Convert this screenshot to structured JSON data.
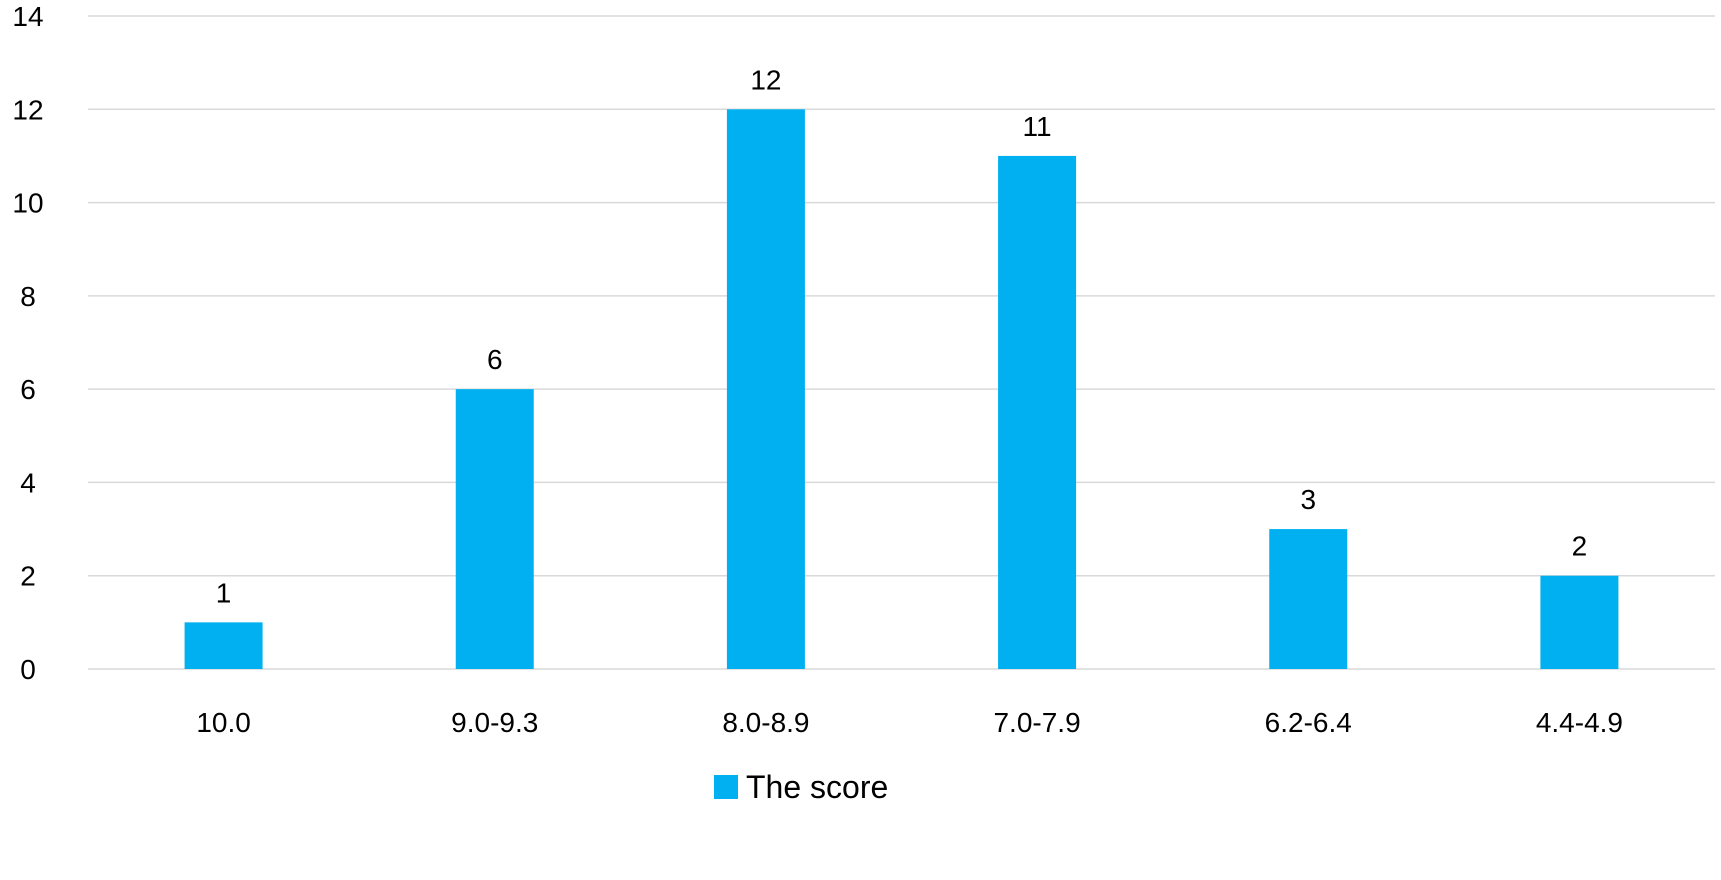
{
  "chart_data": {
    "type": "bar",
    "categories": [
      "10.0",
      "9.0-9.3",
      "8.0-8.9",
      "7.0-7.9",
      "6.2-6.4",
      "4.4-4.9"
    ],
    "series": [
      {
        "name": "The score",
        "values": [
          1,
          6,
          12,
          11,
          3,
          2
        ],
        "color": "#00b0f0"
      }
    ],
    "ylim": [
      0,
      14
    ],
    "yticks": [
      0,
      2,
      4,
      6,
      8,
      10,
      12,
      14
    ],
    "title": "",
    "xlabel": "",
    "ylabel": "",
    "grid": true,
    "data_labels": true,
    "legend_position": "bottom"
  }
}
